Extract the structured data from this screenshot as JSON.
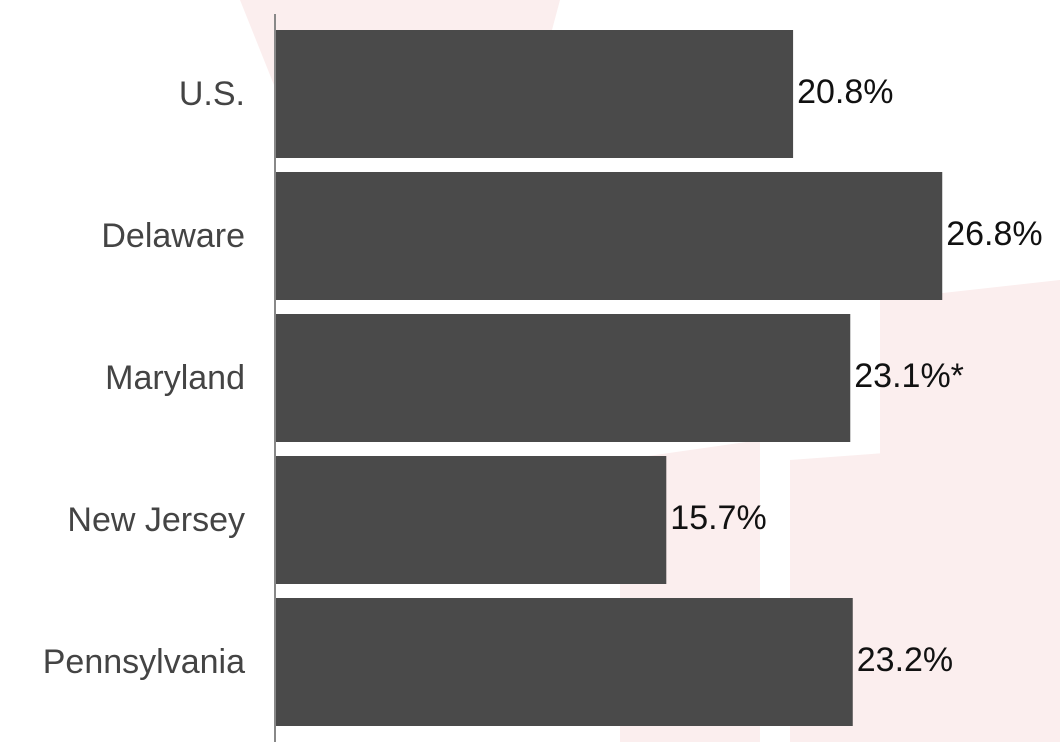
{
  "chart_data": {
    "type": "bar",
    "orientation": "horizontal",
    "categories": [
      "U.S.",
      "Delaware",
      "Maryland",
      "New Jersey",
      "Pennsylvania"
    ],
    "values": [
      20.8,
      26.8,
      23.1,
      15.7,
      23.2
    ],
    "value_labels": [
      "20.8%",
      "26.8%",
      "23.1%*",
      "15.7%",
      "23.2%"
    ],
    "color": "#4a4a4a"
  }
}
